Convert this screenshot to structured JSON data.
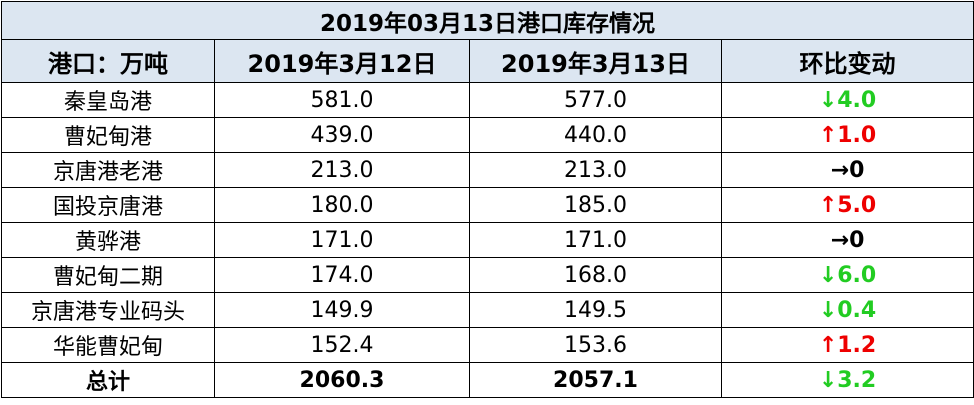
{
  "table": {
    "title": "2019年03月13日港口库存情况",
    "header": [
      "港口：万吨",
      "2019年3月12日",
      "2019年3月13日",
      "环比变动"
    ],
    "rows": [
      [
        "秦皇岛港",
        "581.0",
        "577.0",
        "↓4.0"
      ],
      [
        "曹妃甸港",
        "439.0",
        "440.0",
        "↑1.0"
      ],
      [
        "京唐港老港",
        "213.0",
        "213.0",
        "→0"
      ],
      [
        "国投京唐港",
        "180.0",
        "185.0",
        "↑5.0"
      ],
      [
        "黄骅港",
        "171.0",
        "171.0",
        "→0"
      ],
      [
        "曹妃甸二期",
        "174.0",
        "168.0",
        "↓6.0"
      ],
      [
        "京唐港专业码头",
        "149.9",
        "149.5",
        "↓0.4"
      ],
      [
        "华能曹妃甸",
        "152.4",
        "153.6",
        "↑1.2"
      ],
      [
        "总计",
        "2060.3",
        "2057.1",
        "↓3.2"
      ]
    ]
  }
}
